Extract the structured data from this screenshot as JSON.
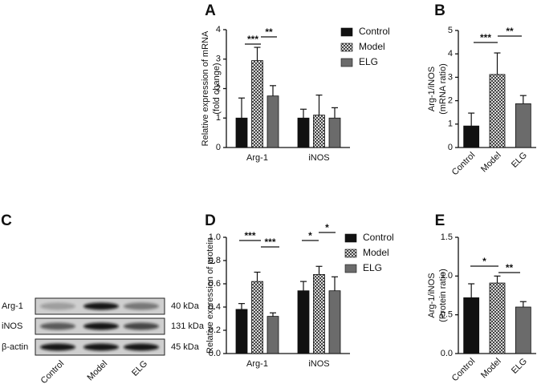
{
  "chart_data": [
    {
      "type": "bar",
      "label": "A",
      "ylabel": [
        "Relative expression of mRNA",
        "(fold change)"
      ],
      "categories": [
        "Arg-1",
        "iNOS"
      ],
      "series": [
        {
          "name": "Control",
          "color": "#111111",
          "fill": "solid",
          "values": [
            1.0,
            1.0
          ],
          "errors": [
            0.68,
            0.3
          ]
        },
        {
          "name": "Model",
          "color": "#555555",
          "fill": "checker",
          "values": [
            2.95,
            1.1
          ],
          "errors": [
            0.45,
            0.68
          ]
        },
        {
          "name": "ELG",
          "color": "#6b6b6b",
          "fill": "solid",
          "values": [
            1.75,
            1.0
          ],
          "errors": [
            0.35,
            0.35
          ]
        }
      ],
      "ylim": [
        0,
        4
      ],
      "yticks": [
        0,
        1,
        2,
        3,
        4
      ],
      "annotations": [
        "***",
        "**"
      ],
      "legend": "upper right"
    },
    {
      "type": "bar",
      "label": "B",
      "ylabel": [
        "Arg-1/iNOS",
        "(mRNA ratio)"
      ],
      "categories": [
        "Control",
        "Model",
        "ELG"
      ],
      "values": [
        0.92,
        3.12,
        1.87
      ],
      "errors": [
        0.55,
        0.92,
        0.35
      ],
      "colors": [
        "#111111",
        "#555555",
        "#6b6b6b"
      ],
      "fills": [
        "solid",
        "checker",
        "solid"
      ],
      "ylim": [
        0,
        5
      ],
      "yticks": [
        0,
        1,
        2,
        3,
        4,
        5
      ],
      "annotations": [
        "***",
        "**"
      ]
    },
    {
      "type": "bar",
      "label": "D",
      "ylabel": [
        "Relative expression of protein"
      ],
      "categories": [
        "Arg-1",
        "iNOS"
      ],
      "series": [
        {
          "name": "Control",
          "color": "#111111",
          "fill": "solid",
          "values": [
            0.38,
            0.54
          ],
          "errors": [
            0.05,
            0.08
          ]
        },
        {
          "name": "Model",
          "color": "#555555",
          "fill": "checker",
          "values": [
            0.62,
            0.68
          ],
          "errors": [
            0.08,
            0.07
          ]
        },
        {
          "name": "ELG",
          "color": "#6b6b6b",
          "fill": "solid",
          "values": [
            0.32,
            0.54
          ],
          "errors": [
            0.03,
            0.12
          ]
        }
      ],
      "ylim": [
        0,
        1
      ],
      "yticks": [
        {
          "value": 0,
          "label": "0.0"
        },
        0.2,
        0.4,
        0.6,
        0.8,
        {
          "value": 1,
          "label": "1.0"
        }
      ],
      "annotations": [
        "***",
        "***",
        "*",
        "*"
      ],
      "legend": "upper right"
    },
    {
      "type": "bar",
      "label": "E",
      "ylabel": [
        "Arg-1/iNOS",
        "(Protein ratio)"
      ],
      "categories": [
        "Control",
        "Model",
        "ELG"
      ],
      "values": [
        0.72,
        0.91,
        0.6
      ],
      "errors": [
        0.18,
        0.09,
        0.07
      ],
      "colors": [
        "#111111",
        "#555555",
        "#6b6b6b"
      ],
      "fills": [
        "solid",
        "checker",
        "solid"
      ],
      "ylim": [
        0,
        1.5
      ],
      "yticks": [
        {
          "value": 0,
          "label": "0.0"
        },
        0.5,
        {
          "value": 1,
          "label": "1.0"
        },
        1.5
      ],
      "annotations": [
        "*",
        "**"
      ]
    }
  ],
  "blot": {
    "label": "C",
    "bands": [
      "Arg-1",
      "iNOS",
      "β-actin"
    ],
    "sizes": [
      "40 kDa",
      "131 kDa",
      "45 kDa"
    ],
    "lanes": [
      "Control",
      "Model",
      "ELG"
    ]
  }
}
